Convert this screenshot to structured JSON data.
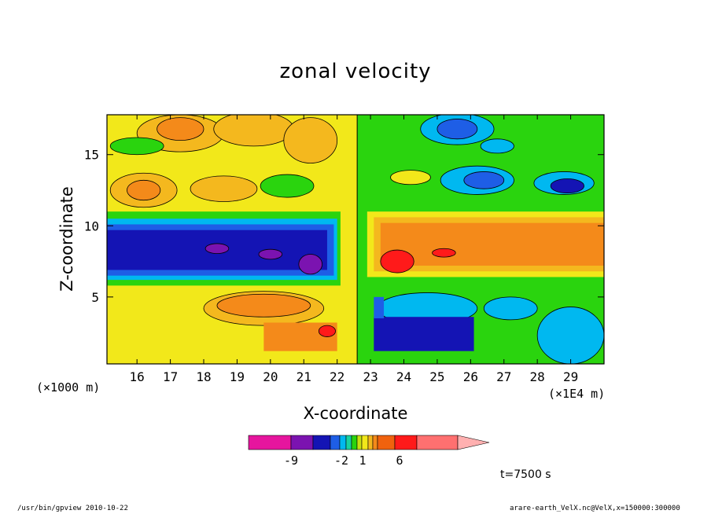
{
  "chart_data": {
    "type": "heatmap",
    "title": "zonal velocity",
    "xlabel": "X-coordinate",
    "ylabel": "Z-coordinate",
    "x_unit_left": "(×1000 m)",
    "x_unit_right": "(×1E4 m)",
    "x_ticks": [
      16,
      17,
      18,
      19,
      20,
      21,
      22,
      23,
      24,
      25,
      26,
      27,
      28,
      29
    ],
    "y_ticks": [
      5,
      10,
      15
    ],
    "xlim": [
      15.1,
      30.0
    ],
    "ylim": [
      0.3,
      17.8
    ],
    "colorbar": {
      "labels": [
        {
          "text": "-9",
          "value": -9
        },
        {
          "text": "-2",
          "value": -2
        },
        {
          "text": "1",
          "value": 1
        },
        {
          "text": "6",
          "value": 6
        }
      ],
      "bins": [
        {
          "color": "#e6159e"
        },
        {
          "color": "#7b13b0"
        },
        {
          "color": "#1414b4"
        },
        {
          "color": "#1e5ee6"
        },
        {
          "color": "#00b8f0"
        },
        {
          "color": "#18d2a0"
        },
        {
          "color": "#2ad40e"
        },
        {
          "color": "#c8e010"
        },
        {
          "color": "#f2e81a"
        },
        {
          "color": "#f4b81e"
        },
        {
          "color": "#f48a1a"
        },
        {
          "color": "#f0620e"
        },
        {
          "color": "#ff1a1a"
        },
        {
          "color": "#ff7070"
        }
      ],
      "overflow_color": "#ffb0b0"
    },
    "field_palette": [
      "#e6159e",
      "#7b13b0",
      "#1414b4",
      "#1e5ee6",
      "#00b8f0",
      "#2ad40e",
      "#f2e81a",
      "#f4b81e",
      "#f48a1a",
      "#ff1a1a"
    ],
    "features": [
      {
        "name": "left jet core negative",
        "x": [
          15.1,
          22.0
        ],
        "z": [
          7.2,
          9.6
        ],
        "value": -7
      },
      {
        "name": "right jet core positive",
        "x": [
          23.4,
          30.0
        ],
        "z": [
          7.8,
          10.0
        ],
        "value": 5
      },
      {
        "name": "left lower positive lobe",
        "x": [
          18.0,
          21.8
        ],
        "z": [
          1.2,
          5.0
        ],
        "value": 4
      },
      {
        "name": "right lower negative lobe",
        "x": [
          23.2,
          26.2
        ],
        "z": [
          1.2,
          4.6
        ],
        "value": -4
      },
      {
        "name": "upper left positive",
        "x": [
          15.1,
          22.4
        ],
        "z": [
          11.0,
          17.8
        ],
        "value": 3
      },
      {
        "name": "upper right negative",
        "x": [
          22.6,
          30.0
        ],
        "z": [
          11.0,
          17.8
        ],
        "value": -3
      }
    ]
  },
  "annotations": {
    "time": "t=7500 s",
    "footer_left": "/usr/bin/gpview  2010-10-22",
    "footer_right": "arare-earth_VelX.nc@VelX,x=150000:300000"
  },
  "colors": {
    "axis": "#000000",
    "background": "#ffffff"
  }
}
